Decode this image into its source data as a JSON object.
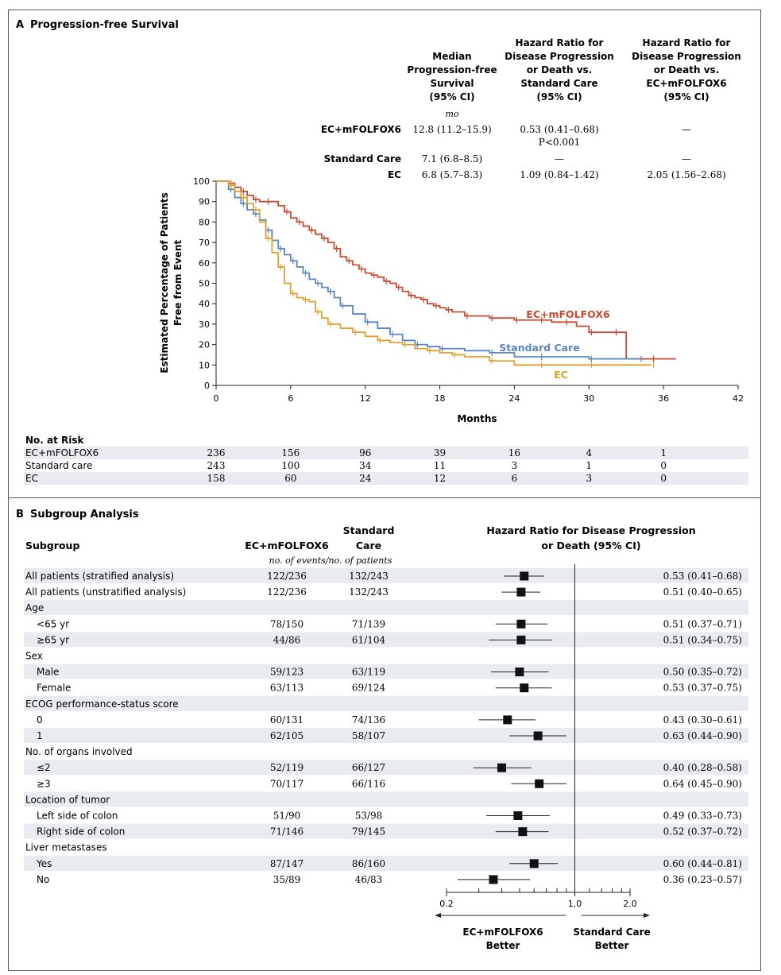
{
  "panelA": {
    "label": "A",
    "title": "Progression-free Survival",
    "headers": {
      "median": [
        "Median",
        "Progression-free",
        "Survival",
        "(95% CI)"
      ],
      "hr_vs_standard": [
        "Hazard Ratio for",
        "Disease Progression",
        "or Death vs.",
        "Standard Care",
        "(95% CI)"
      ],
      "hr_vs_ec_mfolfox6": [
        "Hazard Ratio for",
        "Disease Progression",
        "or Death vs.",
        "EC+mFOLFOX6",
        "(95% CI)"
      ]
    },
    "unit_mo": "mo",
    "table_rows": [
      {
        "group": "EC+mFOLFOX6",
        "median": "12.8 (11.2–15.9)",
        "hr_std": "0.53 (0.41–0.68)",
        "hr_std_p": "P<0.001",
        "hr_ec": "—"
      },
      {
        "group": "Standard Care",
        "median": "7.1 (6.8–8.5)",
        "hr_std": "—",
        "hr_std_p": "",
        "hr_ec": "—"
      },
      {
        "group": "EC",
        "median": "6.8 (5.7–8.3)",
        "hr_std": "1.09 (0.84–1.42)",
        "hr_std_p": "",
        "hr_ec": "2.05 (1.56–2.68)"
      }
    ],
    "risk_table": {
      "title": "No. at Risk",
      "rows": [
        {
          "label": "EC+mFOLFOX6",
          "values": [
            "236",
            "156",
            "96",
            "39",
            "16",
            "4",
            "1"
          ]
        },
        {
          "label": "Standard care",
          "values": [
            "243",
            "100",
            "34",
            "11",
            "3",
            "1",
            "0"
          ]
        },
        {
          "label": "EC",
          "values": [
            "158",
            "60",
            "24",
            "12",
            "6",
            "3",
            "0"
          ]
        }
      ]
    }
  },
  "panelB": {
    "label": "B",
    "title": "Subgroup Analysis",
    "col_subgroup": "Subgroup",
    "col_ec": "EC+mFOLFOX6",
    "col_std": [
      "Standard",
      "Care"
    ],
    "col_note": "no. of events/no. of patients",
    "col_hr": [
      "Hazard Ratio for Disease Progression",
      "or Death (95% CI)"
    ],
    "axis_ticks": [
      "0.2",
      "1.0",
      "2.0"
    ],
    "favors_left": [
      "EC+mFOLFOX6",
      "Better"
    ],
    "favors_right": [
      "Standard Care",
      "Better"
    ],
    "rows": [
      {
        "label": "All patients (stratified analysis)",
        "indent": false,
        "shade": true,
        "ec": "122/236",
        "std": "132/243",
        "hr_text": "0.53 (0.41–0.68)",
        "hr": 0.53,
        "lo": 0.41,
        "hi": 0.68
      },
      {
        "label": "All patients (unstratified analysis)",
        "indent": false,
        "shade": false,
        "ec": "122/236",
        "std": "132/243",
        "hr_text": "0.51 (0.40–0.65)",
        "hr": 0.51,
        "lo": 0.4,
        "hi": 0.65
      },
      {
        "label": "Age",
        "indent": false,
        "shade": true,
        "header": true
      },
      {
        "label": "<65 yr",
        "indent": true,
        "shade": false,
        "ec": "78/150",
        "std": "71/139",
        "hr_text": "0.51 (0.37–0.71)",
        "hr": 0.51,
        "lo": 0.37,
        "hi": 0.71
      },
      {
        "label": "≥65 yr",
        "indent": true,
        "shade": true,
        "ec": "44/86",
        "std": "61/104",
        "hr_text": "0.51 (0.34–0.75)",
        "hr": 0.51,
        "lo": 0.34,
        "hi": 0.75
      },
      {
        "label": "Sex",
        "indent": false,
        "shade": false,
        "header": true
      },
      {
        "label": "Male",
        "indent": true,
        "shade": true,
        "ec": "59/123",
        "std": "63/119",
        "hr_text": "0.50 (0.35–0.72)",
        "hr": 0.5,
        "lo": 0.35,
        "hi": 0.72
      },
      {
        "label": "Female",
        "indent": true,
        "shade": false,
        "ec": "63/113",
        "std": "69/124",
        "hr_text": "0.53 (0.37–0.75)",
        "hr": 0.53,
        "lo": 0.37,
        "hi": 0.75
      },
      {
        "label": "ECOG performance-status score",
        "indent": false,
        "shade": true,
        "header": true
      },
      {
        "label": "0",
        "indent": true,
        "shade": false,
        "ec": "60/131",
        "std": "74/136",
        "hr_text": "0.43 (0.30–0.61)",
        "hr": 0.43,
        "lo": 0.3,
        "hi": 0.61
      },
      {
        "label": "1",
        "indent": true,
        "shade": true,
        "ec": "62/105",
        "std": "58/107",
        "hr_text": "0.63 (0.44–0.90)",
        "hr": 0.63,
        "lo": 0.44,
        "hi": 0.9
      },
      {
        "label": "No. of organs involved",
        "indent": false,
        "shade": false,
        "header": true
      },
      {
        "label": "≤2",
        "indent": true,
        "shade": true,
        "ec": "52/119",
        "std": "66/127",
        "hr_text": "0.40 (0.28–0.58)",
        "hr": 0.4,
        "lo": 0.28,
        "hi": 0.58
      },
      {
        "label": "≥3",
        "indent": true,
        "shade": false,
        "ec": "70/117",
        "std": "66/116",
        "hr_text": "0.64 (0.45–0.90)",
        "hr": 0.64,
        "lo": 0.45,
        "hi": 0.9
      },
      {
        "label": "Location of tumor",
        "indent": false,
        "shade": true,
        "header": true
      },
      {
        "label": "Left side of colon",
        "indent": true,
        "shade": false,
        "ec": "51/90",
        "std": "53/98",
        "hr_text": "0.49 (0.33–0.73)",
        "hr": 0.49,
        "lo": 0.33,
        "hi": 0.73
      },
      {
        "label": "Right side of colon",
        "indent": true,
        "shade": true,
        "ec": "71/146",
        "std": "79/145",
        "hr_text": "0.52 (0.37–0.72)",
        "hr": 0.52,
        "lo": 0.37,
        "hi": 0.72
      },
      {
        "label": "Liver metastases",
        "indent": false,
        "shade": false,
        "header": true
      },
      {
        "label": "Yes",
        "indent": true,
        "shade": true,
        "ec": "87/147",
        "std": "86/160",
        "hr_text": "0.60 (0.44–0.81)",
        "hr": 0.6,
        "lo": 0.44,
        "hi": 0.81
      },
      {
        "label": "No",
        "indent": true,
        "shade": false,
        "ec": "35/89",
        "std": "46/83",
        "hr_text": "0.36 (0.23–0.57)",
        "hr": 0.36,
        "lo": 0.23,
        "hi": 0.57
      }
    ]
  },
  "chart_data": [
    {
      "type": "line",
      "subtype": "kaplan-meier",
      "title": "Progression-free Survival",
      "xlabel": "Months",
      "ylabel": "Estimated Percentage of Patients Free from Event",
      "xlim": [
        0,
        42
      ],
      "ylim": [
        0,
        100
      ],
      "xticks": [
        "0",
        "6",
        "12",
        "18",
        "24",
        "30",
        "36",
        "42"
      ],
      "yticks": [
        "0",
        "10",
        "20",
        "30",
        "40",
        "50",
        "60",
        "70",
        "80",
        "90",
        "100"
      ],
      "series": [
        {
          "name": "EC+mFOLFOX6",
          "color": "#c84b32",
          "x": [
            0,
            1,
            1.5,
            2,
            2.5,
            3,
            3.5,
            4,
            5,
            5.5,
            6,
            6.5,
            7,
            7.5,
            8,
            8.5,
            9,
            9.5,
            10,
            10.5,
            11,
            11.5,
            12,
            12.5,
            13,
            13.5,
            14,
            14.5,
            15,
            15.5,
            16,
            16.5,
            17,
            17.5,
            18,
            18.5,
            19,
            20,
            21,
            22,
            23,
            24,
            25,
            26,
            27,
            28,
            29,
            30,
            31,
            32,
            33,
            35,
            37
          ],
          "y": [
            100,
            99,
            97,
            95,
            93,
            91,
            90,
            90,
            88,
            85,
            82,
            80,
            78,
            76,
            74,
            72,
            70,
            67,
            63,
            61,
            59,
            57,
            55,
            54,
            53,
            51,
            50,
            48,
            46,
            44,
            43,
            42,
            40,
            39,
            38,
            37,
            36,
            34,
            34,
            33,
            33,
            32,
            32,
            32,
            31,
            31,
            29,
            26,
            26,
            26,
            13,
            13,
            13
          ]
        },
        {
          "name": "Standard Care",
          "color": "#5a87c0",
          "x": [
            0,
            1,
            1.5,
            2,
            2.5,
            3,
            3.5,
            4,
            4.5,
            5,
            5.5,
            6,
            6.5,
            7,
            7.5,
            8,
            8.5,
            9,
            9.5,
            10,
            11,
            12,
            13,
            14,
            15,
            16,
            17,
            18,
            20,
            22,
            24,
            26,
            28,
            30,
            32,
            34
          ],
          "y": [
            100,
            96,
            92,
            89,
            86,
            84,
            81,
            76,
            71,
            67,
            64,
            61,
            58,
            55,
            52,
            50,
            48,
            46,
            43,
            39,
            35,
            31,
            28,
            25,
            22,
            20,
            19,
            18,
            17,
            16,
            14,
            14,
            14,
            13,
            13,
            13
          ]
        },
        {
          "name": "EC",
          "color": "#e0a030",
          "x": [
            0,
            1,
            1.5,
            2,
            2.5,
            3,
            3.5,
            4,
            4.5,
            5,
            5.5,
            6,
            6.5,
            7,
            7.5,
            8,
            8.5,
            9,
            10,
            11,
            12,
            13,
            14,
            15,
            16,
            17,
            18,
            19,
            20,
            22,
            24,
            26,
            28,
            30,
            32,
            35
          ],
          "y": [
            100,
            98,
            95,
            92,
            89,
            86,
            80,
            72,
            65,
            58,
            50,
            45,
            43,
            42,
            41,
            36,
            33,
            30,
            28,
            26,
            24,
            22,
            21,
            20,
            18,
            17,
            16,
            15,
            14,
            12,
            10,
            10,
            10,
            10,
            10,
            10
          ]
        }
      ],
      "annotations": [
        "EC+mFOLFOX6",
        "Standard Care",
        "EC"
      ]
    },
    {
      "type": "forest",
      "title": "Subgroup Analysis",
      "xlabel": "Hazard Ratio for Disease Progression or Death (95% CI)",
      "x_scale": "log",
      "xlim": [
        0.2,
        2.0
      ],
      "reference": 1.0
    }
  ]
}
